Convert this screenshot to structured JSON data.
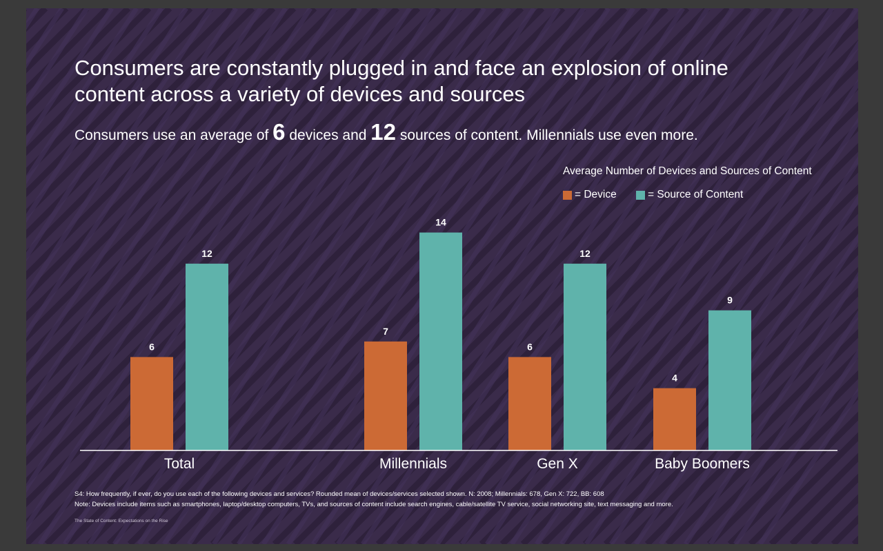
{
  "slide": {
    "title_line1": "Consumers are constantly plugged in and face an explosion of online",
    "title_line2": "content across a variety of devices and sources",
    "subtitle": {
      "part1": "Consumers use an average of ",
      "num1": "6",
      "part2": " devices and ",
      "num2": "12",
      "part3": " sources of content. Millennials use even more."
    },
    "legend_title": "Average Number of Devices and Sources of Content",
    "footnote1": "S4: How frequently, if ever, do you use each of the following devices and services? Rounded mean of devices/services selected shown. N: 2008; Millennials: 678, Gen X: 722, BB: 608",
    "footnote2": "Note: Devices include items such as smartphones, laptop/desktop computers, TVs, and sources of content include search engines, cable/satellite TV service, social networking site, text messaging and more.",
    "source": "The State of Content: Expectations on the Rise"
  },
  "colors": {
    "background": "#3a2b4a",
    "device": "#cc6a35",
    "source_of_content": "#5fb3ab"
  },
  "chart_data": {
    "type": "bar",
    "title": "Average Number of Devices and Sources of Content",
    "categories": [
      "Total",
      "Millennials",
      "Gen X",
      "Baby Boomers"
    ],
    "series": [
      {
        "name": "= Device",
        "values": [
          6,
          7,
          6,
          4
        ]
      },
      {
        "name": "= Source of Content",
        "values": [
          12,
          14,
          12,
          9
        ]
      }
    ],
    "ylim": [
      0,
      15
    ],
    "grid": false,
    "legend_position": "top-right",
    "data_labels": true
  }
}
